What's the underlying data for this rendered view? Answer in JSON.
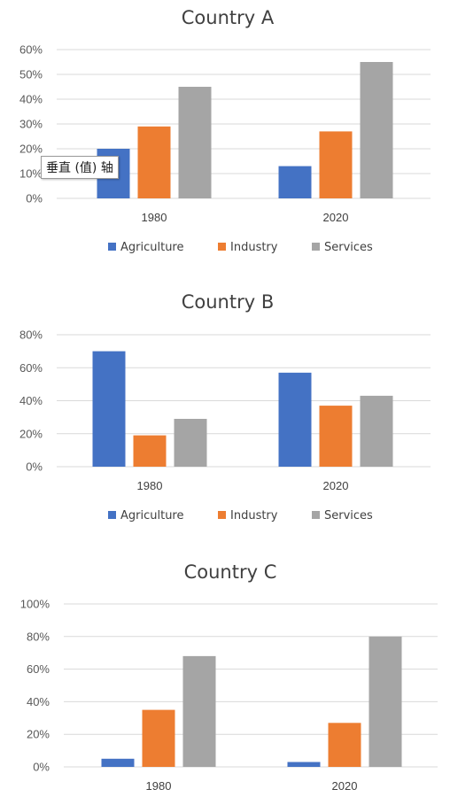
{
  "tooltip": {
    "text": "垂直 (值) 轴"
  },
  "colors": {
    "Agriculture": "#4472c4",
    "Industry": "#ed7d31",
    "Services": "#a5a5a5"
  },
  "chart_data": [
    {
      "type": "bar",
      "title": "Country A",
      "categories": [
        "1980",
        "2020"
      ],
      "series": [
        {
          "name": "Agriculture",
          "values": [
            20,
            13
          ]
        },
        {
          "name": "Industry",
          "values": [
            29,
            27
          ]
        },
        {
          "name": "Services",
          "values": [
            45,
            55
          ]
        }
      ],
      "ylim": [
        0,
        60
      ],
      "yticks": [
        "0%",
        "10%",
        "20%",
        "30%",
        "40%",
        "50%",
        "60%"
      ],
      "grid": true,
      "legend": "bottom"
    },
    {
      "type": "bar",
      "title": "Country B",
      "categories": [
        "1980",
        "2020"
      ],
      "series": [
        {
          "name": "Agriculture",
          "values": [
            70,
            57
          ]
        },
        {
          "name": "Industry",
          "values": [
            19,
            37
          ]
        },
        {
          "name": "Services",
          "values": [
            29,
            43
          ]
        }
      ],
      "ylim": [
        0,
        80
      ],
      "yticks": [
        "0%",
        "20%",
        "40%",
        "60%",
        "80%"
      ],
      "grid": true,
      "legend": "bottom"
    },
    {
      "type": "bar",
      "title": "Country C",
      "categories": [
        "1980",
        "2020"
      ],
      "series": [
        {
          "name": "Agriculture",
          "values": [
            5,
            3
          ]
        },
        {
          "name": "Industry",
          "values": [
            35,
            27
          ]
        },
        {
          "name": "Services",
          "values": [
            68,
            80
          ]
        }
      ],
      "ylim": [
        0,
        100
      ],
      "yticks": [
        "0%",
        "20%",
        "40%",
        "60%",
        "80%",
        "100%"
      ],
      "grid": true,
      "legend": "none"
    }
  ]
}
